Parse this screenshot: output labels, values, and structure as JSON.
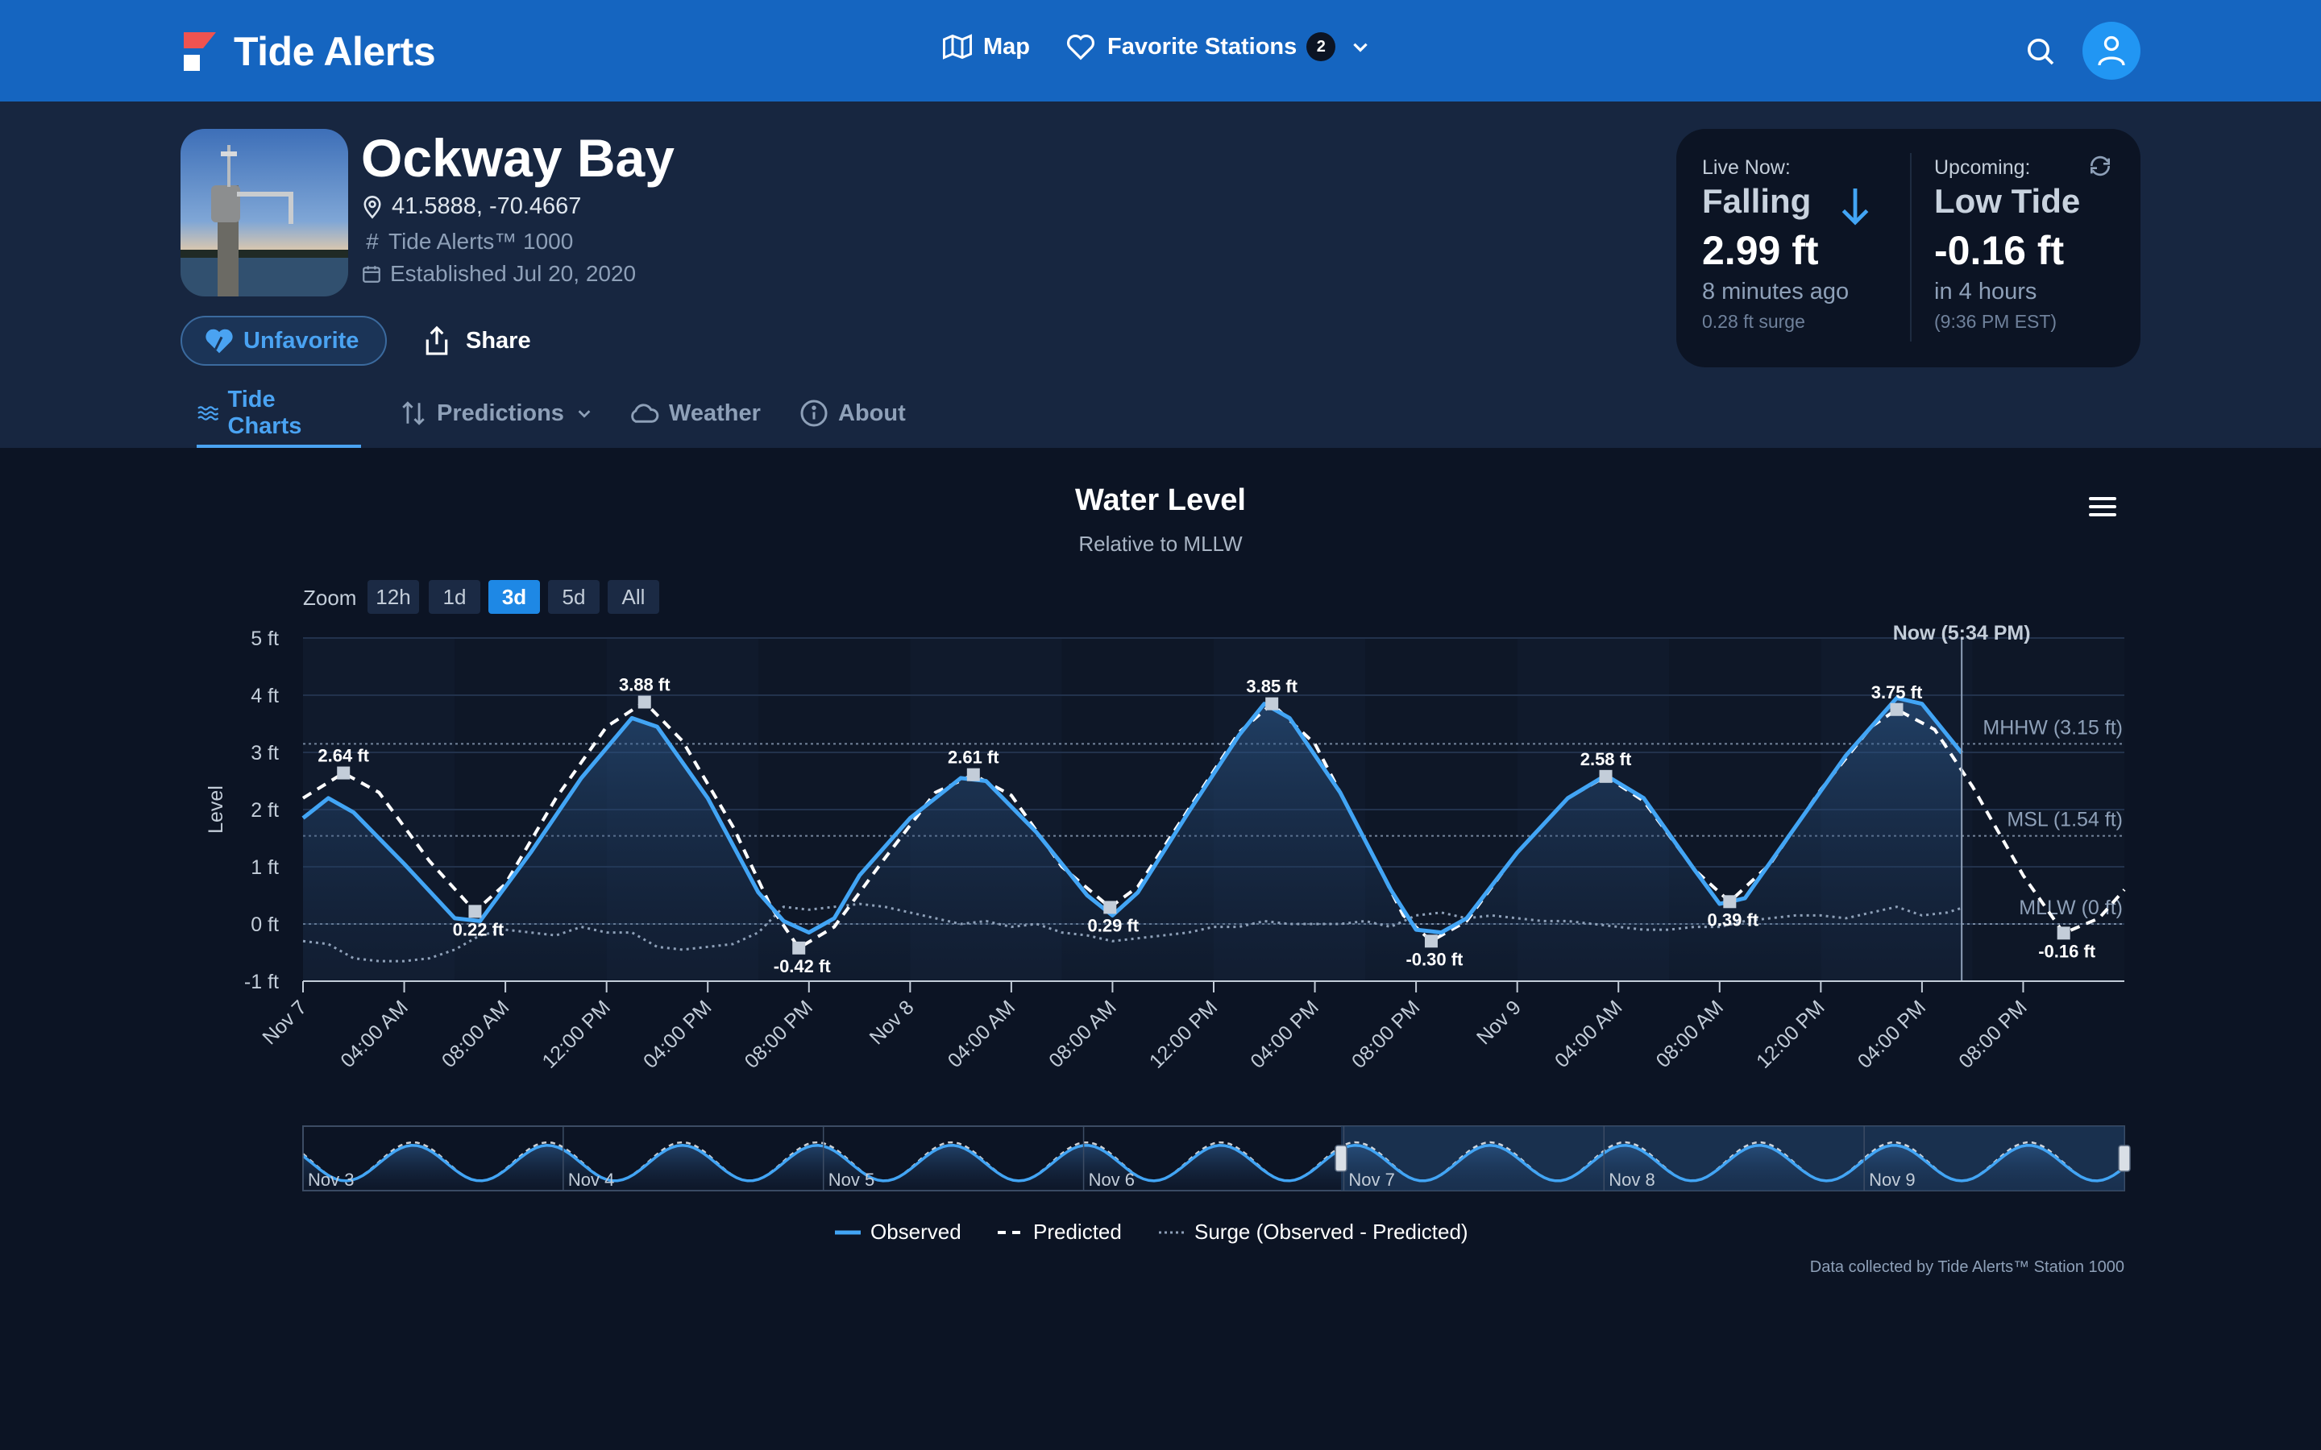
{
  "brand": {
    "name": "Tide Alerts"
  },
  "nav": {
    "map_label": "Map",
    "favorites_label": "Favorite Stations",
    "favorites_count": "2"
  },
  "station": {
    "name": "Ockway Bay",
    "coords": "41.5888, -70.4667",
    "model": "Tide Alerts™ 1000",
    "established": "Established Jul 20, 2020"
  },
  "actions": {
    "unfavorite": "Unfavorite",
    "share": "Share"
  },
  "tabs": [
    {
      "label": "Tide Charts"
    },
    {
      "label": "Predictions"
    },
    {
      "label": "Weather"
    },
    {
      "label": "About"
    }
  ],
  "live": {
    "label": "Live Now:",
    "trend": "Falling",
    "value": "2.99 ft",
    "ago": "8 minutes ago",
    "surge": "0.28 ft surge"
  },
  "upcoming": {
    "label": "Upcoming:",
    "event": "Low Tide",
    "value": "-0.16 ft",
    "in": "in 4 hours",
    "time": "(9:36 PM EST)"
  },
  "chart_data": {
    "type": "line",
    "title": "Water Level",
    "subtitle": "Relative to MLLW",
    "ylabel": "Level",
    "ylim": [
      -1,
      5
    ],
    "yticks": [
      "5 ft",
      "4 ft",
      "3 ft",
      "2 ft",
      "1 ft",
      "0 ft",
      "-1 ft"
    ],
    "xticks": [
      "Nov 7",
      "04:00 AM",
      "08:00 AM",
      "12:00 PM",
      "04:00 PM",
      "08:00 PM",
      "Nov 8",
      "04:00 AM",
      "08:00 AM",
      "12:00 PM",
      "04:00 PM",
      "08:00 PM",
      "Nov 9",
      "04:00 AM",
      "08:00 AM",
      "12:00 PM",
      "04:00 PM",
      "08:00 PM"
    ],
    "x_range_hours": [
      0,
      72
    ],
    "now_hour": 65.57,
    "now_label": "Now (5:34 PM)",
    "reference_lines": [
      {
        "label": "MHHW (3.15 ft)",
        "value": 3.15
      },
      {
        "label": "MSL (1.54 ft)",
        "value": 1.54
      },
      {
        "label": "MLLW (0 ft)",
        "value": 0
      }
    ],
    "extremes": [
      {
        "hour": 1.6,
        "value": 2.64,
        "label": "2.64 ft"
      },
      {
        "hour": 6.8,
        "value": 0.22,
        "label": "0.22 ft"
      },
      {
        "hour": 13.5,
        "value": 3.88,
        "label": "3.88 ft"
      },
      {
        "hour": 19.6,
        "value": -0.42,
        "label": "-0.42 ft"
      },
      {
        "hour": 26.5,
        "value": 2.61,
        "label": "2.61 ft"
      },
      {
        "hour": 31.9,
        "value": 0.29,
        "label": "0.29 ft"
      },
      {
        "hour": 38.3,
        "value": 3.85,
        "label": "3.85 ft"
      },
      {
        "hour": 44.6,
        "value": -0.3,
        "label": "-0.30 ft"
      },
      {
        "hour": 51.5,
        "value": 2.58,
        "label": "2.58 ft"
      },
      {
        "hour": 56.4,
        "value": 0.39,
        "label": "0.39 ft"
      },
      {
        "hour": 63.0,
        "value": 3.75,
        "label": "3.75 ft"
      },
      {
        "hour": 69.6,
        "value": -0.16,
        "label": "-0.16 ft"
      }
    ],
    "series": [
      {
        "name": "Observed",
        "points": [
          [
            0,
            1.85
          ],
          [
            1,
            2.2
          ],
          [
            2,
            1.95
          ],
          [
            4,
            1.05
          ],
          [
            6,
            0.1
          ],
          [
            7,
            0.05
          ],
          [
            9,
            1.25
          ],
          [
            11,
            2.55
          ],
          [
            13,
            3.6
          ],
          [
            14,
            3.45
          ],
          [
            16,
            2.2
          ],
          [
            18,
            0.55
          ],
          [
            19,
            0.05
          ],
          [
            20,
            -0.15
          ],
          [
            21,
            0.1
          ],
          [
            22,
            0.85
          ],
          [
            24,
            1.85
          ],
          [
            26,
            2.55
          ],
          [
            27,
            2.5
          ],
          [
            29,
            1.6
          ],
          [
            31,
            0.5
          ],
          [
            32,
            0.15
          ],
          [
            33,
            0.55
          ],
          [
            35,
            1.95
          ],
          [
            37,
            3.3
          ],
          [
            38,
            3.85
          ],
          [
            39,
            3.6
          ],
          [
            41,
            2.3
          ],
          [
            43,
            0.6
          ],
          [
            44,
            -0.1
          ],
          [
            45,
            -0.15
          ],
          [
            46,
            0.1
          ],
          [
            48,
            1.25
          ],
          [
            50,
            2.2
          ],
          [
            51.5,
            2.6
          ],
          [
            53,
            2.2
          ],
          [
            55,
            0.95
          ],
          [
            56,
            0.35
          ],
          [
            57,
            0.45
          ],
          [
            59,
            1.7
          ],
          [
            61,
            2.95
          ],
          [
            63,
            3.95
          ],
          [
            64,
            3.85
          ],
          [
            65.57,
            2.99
          ]
        ]
      },
      {
        "name": "Predicted",
        "points": [
          [
            0,
            2.2
          ],
          [
            1.6,
            2.64
          ],
          [
            3,
            2.3
          ],
          [
            5,
            1.1
          ],
          [
            6.8,
            0.22
          ],
          [
            8,
            0.7
          ],
          [
            10,
            2.2
          ],
          [
            12,
            3.45
          ],
          [
            13.5,
            3.88
          ],
          [
            15,
            3.2
          ],
          [
            17,
            1.7
          ],
          [
            18.5,
            0.3
          ],
          [
            19.6,
            -0.42
          ],
          [
            21,
            -0.05
          ],
          [
            23,
            1.15
          ],
          [
            25,
            2.3
          ],
          [
            26.5,
            2.61
          ],
          [
            28,
            2.25
          ],
          [
            30,
            1.0
          ],
          [
            31.9,
            0.29
          ],
          [
            33,
            0.65
          ],
          [
            35,
            2.0
          ],
          [
            37,
            3.35
          ],
          [
            38.3,
            3.85
          ],
          [
            40,
            3.15
          ],
          [
            42,
            1.45
          ],
          [
            43.5,
            0.15
          ],
          [
            44.6,
            -0.3
          ],
          [
            46,
            0.05
          ],
          [
            48,
            1.25
          ],
          [
            50,
            2.2
          ],
          [
            51.5,
            2.58
          ],
          [
            53,
            2.15
          ],
          [
            55,
            0.95
          ],
          [
            56.4,
            0.39
          ],
          [
            58,
            1.05
          ],
          [
            60,
            2.35
          ],
          [
            62,
            3.45
          ],
          [
            63,
            3.75
          ],
          [
            64.5,
            3.4
          ],
          [
            66,
            2.4
          ],
          [
            68,
            0.85
          ],
          [
            69.6,
            -0.16
          ],
          [
            71,
            0.1
          ],
          [
            72,
            0.6
          ]
        ]
      },
      {
        "name": "Surge (Observed - Predicted)",
        "points": [
          [
            0,
            -0.3
          ],
          [
            1,
            -0.35
          ],
          [
            2,
            -0.6
          ],
          [
            3,
            -0.65
          ],
          [
            4,
            -0.65
          ],
          [
            5,
            -0.6
          ],
          [
            6,
            -0.45
          ],
          [
            7,
            -0.2
          ],
          [
            8,
            -0.1
          ],
          [
            9,
            -0.15
          ],
          [
            10,
            -0.2
          ],
          [
            11,
            -0.05
          ],
          [
            12,
            -0.15
          ],
          [
            13,
            -0.15
          ],
          [
            14,
            -0.4
          ],
          [
            15,
            -0.45
          ],
          [
            16,
            -0.4
          ],
          [
            17,
            -0.35
          ],
          [
            18,
            -0.15
          ],
          [
            19,
            0.3
          ],
          [
            20,
            0.25
          ],
          [
            21,
            0.3
          ],
          [
            22,
            0.35
          ],
          [
            23,
            0.3
          ],
          [
            24,
            0.2
          ],
          [
            25,
            0.1
          ],
          [
            26,
            0.0
          ],
          [
            27,
            0.05
          ],
          [
            28,
            -0.05
          ],
          [
            29,
            0.0
          ],
          [
            30,
            -0.15
          ],
          [
            31,
            -0.2
          ],
          [
            32,
            -0.3
          ],
          [
            33,
            -0.25
          ],
          [
            34,
            -0.2
          ],
          [
            35,
            -0.15
          ],
          [
            36,
            -0.05
          ],
          [
            37,
            -0.05
          ],
          [
            38,
            0.05
          ],
          [
            39,
            0.0
          ],
          [
            40,
            0.0
          ],
          [
            41,
            0.0
          ],
          [
            42,
            0.05
          ],
          [
            43,
            -0.05
          ],
          [
            44,
            0.15
          ],
          [
            45,
            0.2
          ],
          [
            46,
            0.1
          ],
          [
            47,
            0.15
          ],
          [
            48,
            0.1
          ],
          [
            49,
            0.05
          ],
          [
            50,
            0.05
          ],
          [
            51,
            0.0
          ],
          [
            52,
            -0.05
          ],
          [
            53,
            -0.1
          ],
          [
            54,
            -0.1
          ],
          [
            55,
            -0.05
          ],
          [
            56,
            -0.05
          ],
          [
            57,
            0.05
          ],
          [
            58,
            0.1
          ],
          [
            59,
            0.15
          ],
          [
            60,
            0.15
          ],
          [
            61,
            0.1
          ],
          [
            62,
            0.2
          ],
          [
            63,
            0.3
          ],
          [
            64,
            0.15
          ],
          [
            65,
            0.2
          ],
          [
            65.57,
            0.28
          ]
        ]
      }
    ],
    "navigator_labels": [
      "Nov 3",
      "Nov 4",
      "Nov 5",
      "Nov 6",
      "Nov 7",
      "Nov 8",
      "Nov 9"
    ],
    "legend": [
      "Observed",
      "Predicted",
      "Surge (Observed - Predicted)"
    ],
    "colors": {
      "observed": "#42a5f5",
      "predicted": "#ffffff",
      "surge": "#8ea0b8"
    }
  },
  "zoom": {
    "label": "Zoom",
    "options": [
      "12h",
      "1d",
      "3d",
      "5d",
      "All"
    ],
    "active": "3d"
  },
  "credit": "Data collected by Tide Alerts™ Station 1000"
}
